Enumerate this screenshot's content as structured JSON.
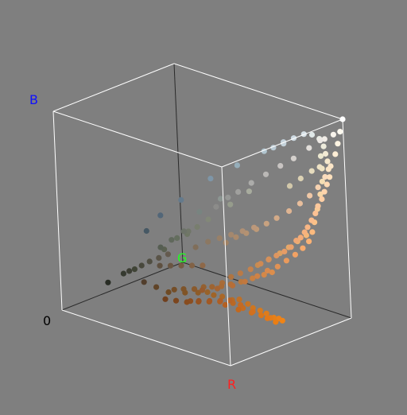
{
  "chart_data": {
    "type": "scatter",
    "title": "",
    "axes": {
      "r_label": "R",
      "g_label": "G",
      "b_label": "B",
      "origin_label": "0",
      "range": [
        0,
        255
      ]
    },
    "grid": false,
    "legend": "none",
    "colors": {
      "background": "#7f7f7f",
      "cube_edge_front": "#ffffff",
      "cube_edge_back": "#2a2a2a",
      "r_label": "#ff2020",
      "g_label": "#20ff20",
      "b_label": "#1010ff",
      "origin_label": "#000000"
    },
    "points_rgb": [
      [
        255,
        255,
        255
      ],
      [
        248,
        244,
        236
      ],
      [
        240,
        236,
        230
      ],
      [
        236,
        232,
        228
      ],
      [
        226,
        222,
        218
      ],
      [
        212,
        208,
        204
      ],
      [
        200,
        196,
        194
      ],
      [
        186,
        184,
        182
      ],
      [
        172,
        172,
        170
      ],
      [
        160,
        160,
        158
      ],
      [
        150,
        152,
        150
      ],
      [
        140,
        140,
        138
      ],
      [
        196,
        210,
        220
      ],
      [
        176,
        196,
        206
      ],
      [
        150,
        174,
        186
      ],
      [
        126,
        150,
        168
      ],
      [
        100,
        122,
        140
      ],
      [
        82,
        102,
        120
      ],
      [
        70,
        88,
        100
      ],
      [
        96,
        104,
        92
      ],
      [
        86,
        94,
        82
      ],
      [
        100,
        110,
        94
      ],
      [
        64,
        68,
        54
      ],
      [
        72,
        72,
        60
      ],
      [
        54,
        58,
        48
      ],
      [
        40,
        44,
        36
      ],
      [
        60,
        62,
        52
      ],
      [
        90,
        96,
        80
      ],
      [
        112,
        118,
        104
      ],
      [
        130,
        136,
        120
      ],
      [
        150,
        156,
        140
      ],
      [
        168,
        172,
        158
      ],
      [
        140,
        150,
        146
      ],
      [
        120,
        132,
        128
      ],
      [
        108,
        114,
        104
      ],
      [
        82,
        62,
        44
      ],
      [
        96,
        68,
        40
      ],
      [
        110,
        74,
        36
      ],
      [
        128,
        84,
        38
      ],
      [
        142,
        92,
        40
      ],
      [
        152,
        98,
        42
      ],
      [
        160,
        100,
        40
      ],
      [
        170,
        104,
        40
      ],
      [
        182,
        108,
        38
      ],
      [
        190,
        112,
        40
      ],
      [
        200,
        116,
        36
      ],
      [
        206,
        118,
        32
      ],
      [
        214,
        122,
        30
      ],
      [
        222,
        124,
        28
      ],
      [
        230,
        128,
        24
      ],
      [
        236,
        130,
        24
      ],
      [
        240,
        132,
        22
      ],
      [
        234,
        126,
        20
      ],
      [
        226,
        120,
        24
      ],
      [
        210,
        112,
        30
      ],
      [
        196,
        106,
        36
      ],
      [
        184,
        100,
        40
      ],
      [
        174,
        94,
        38
      ],
      [
        162,
        88,
        36
      ],
      [
        150,
        82,
        34
      ],
      [
        140,
        78,
        32
      ],
      [
        168,
        108,
        56
      ],
      [
        176,
        116,
        64
      ],
      [
        186,
        122,
        70
      ],
      [
        196,
        130,
        76
      ],
      [
        206,
        138,
        84
      ],
      [
        214,
        144,
        90
      ],
      [
        222,
        150,
        96
      ],
      [
        230,
        156,
        102
      ],
      [
        236,
        162,
        108
      ],
      [
        240,
        168,
        116
      ],
      [
        244,
        172,
        120
      ],
      [
        246,
        178,
        126
      ],
      [
        248,
        182,
        132
      ],
      [
        250,
        188,
        140
      ],
      [
        252,
        194,
        148
      ],
      [
        252,
        200,
        156
      ],
      [
        254,
        206,
        164
      ],
      [
        254,
        212,
        172
      ],
      [
        254,
        218,
        180
      ],
      [
        254,
        224,
        188
      ],
      [
        250,
        228,
        196
      ],
      [
        246,
        232,
        204
      ],
      [
        242,
        234,
        212
      ],
      [
        238,
        236,
        220
      ],
      [
        232,
        236,
        228
      ],
      [
        224,
        232,
        232
      ],
      [
        216,
        226,
        232
      ],
      [
        206,
        218,
        226
      ],
      [
        196,
        210,
        218
      ],
      [
        186,
        202,
        212
      ],
      [
        200,
        140,
        80
      ],
      [
        210,
        150,
        88
      ],
      [
        220,
        160,
        96
      ],
      [
        228,
        168,
        104
      ],
      [
        236,
        176,
        112
      ],
      [
        244,
        184,
        120
      ],
      [
        212,
        136,
        72
      ],
      [
        220,
        142,
        76
      ],
      [
        200,
        128,
        66
      ],
      [
        188,
        120,
        60
      ],
      [
        178,
        112,
        56
      ],
      [
        168,
        106,
        52
      ],
      [
        158,
        100,
        50
      ],
      [
        148,
        96,
        48
      ],
      [
        138,
        90,
        44
      ],
      [
        126,
        84,
        42
      ],
      [
        116,
        78,
        40
      ],
      [
        180,
        96,
        34
      ],
      [
        194,
        104,
        30
      ],
      [
        208,
        112,
        28
      ],
      [
        218,
        118,
        26
      ],
      [
        228,
        124,
        24
      ],
      [
        198,
        108,
        32
      ],
      [
        186,
        104,
        36
      ],
      [
        172,
        96,
        36
      ],
      [
        160,
        90,
        34
      ],
      [
        148,
        84,
        32
      ],
      [
        136,
        76,
        30
      ],
      [
        124,
        70,
        30
      ],
      [
        112,
        64,
        30
      ],
      [
        150,
        90,
        46
      ],
      [
        166,
        100,
        50
      ],
      [
        182,
        110,
        56
      ],
      [
        194,
        120,
        62
      ],
      [
        206,
        130,
        70
      ],
      [
        216,
        138,
        78
      ],
      [
        226,
        146,
        84
      ],
      [
        234,
        154,
        92
      ],
      [
        242,
        162,
        100
      ],
      [
        248,
        170,
        108
      ],
      [
        252,
        178,
        116
      ],
      [
        252,
        186,
        126
      ],
      [
        250,
        194,
        136
      ],
      [
        248,
        204,
        150
      ],
      [
        246,
        214,
        166
      ],
      [
        244,
        222,
        180
      ],
      [
        240,
        228,
        194
      ],
      [
        236,
        232,
        208
      ],
      [
        160,
        130,
        100
      ],
      [
        170,
        138,
        108
      ],
      [
        180,
        146,
        114
      ],
      [
        190,
        154,
        120
      ],
      [
        200,
        162,
        128
      ],
      [
        210,
        170,
        136
      ],
      [
        222,
        180,
        146
      ],
      [
        232,
        190,
        156
      ],
      [
        240,
        200,
        166
      ],
      [
        246,
        210,
        176
      ],
      [
        250,
        220,
        188
      ],
      [
        252,
        230,
        200
      ],
      [
        254,
        238,
        214
      ],
      [
        254,
        244,
        226
      ],
      [
        254,
        250,
        240
      ],
      [
        210,
        200,
        170
      ],
      [
        220,
        210,
        180
      ],
      [
        230,
        220,
        190
      ],
      [
        238,
        226,
        196
      ],
      [
        120,
        126,
        110
      ],
      [
        110,
        118,
        100
      ],
      [
        128,
        110,
        90
      ],
      [
        140,
        120,
        98
      ],
      [
        152,
        128,
        104
      ],
      [
        164,
        136,
        110
      ],
      [
        176,
        144,
        116
      ],
      [
        188,
        152,
        122
      ],
      [
        100,
        90,
        78
      ],
      [
        90,
        84,
        72
      ],
      [
        80,
        78,
        66
      ],
      [
        94,
        80,
        64
      ],
      [
        106,
        86,
        66
      ],
      [
        118,
        92,
        68
      ],
      [
        130,
        98,
        70
      ],
      [
        142,
        104,
        72
      ]
    ]
  }
}
